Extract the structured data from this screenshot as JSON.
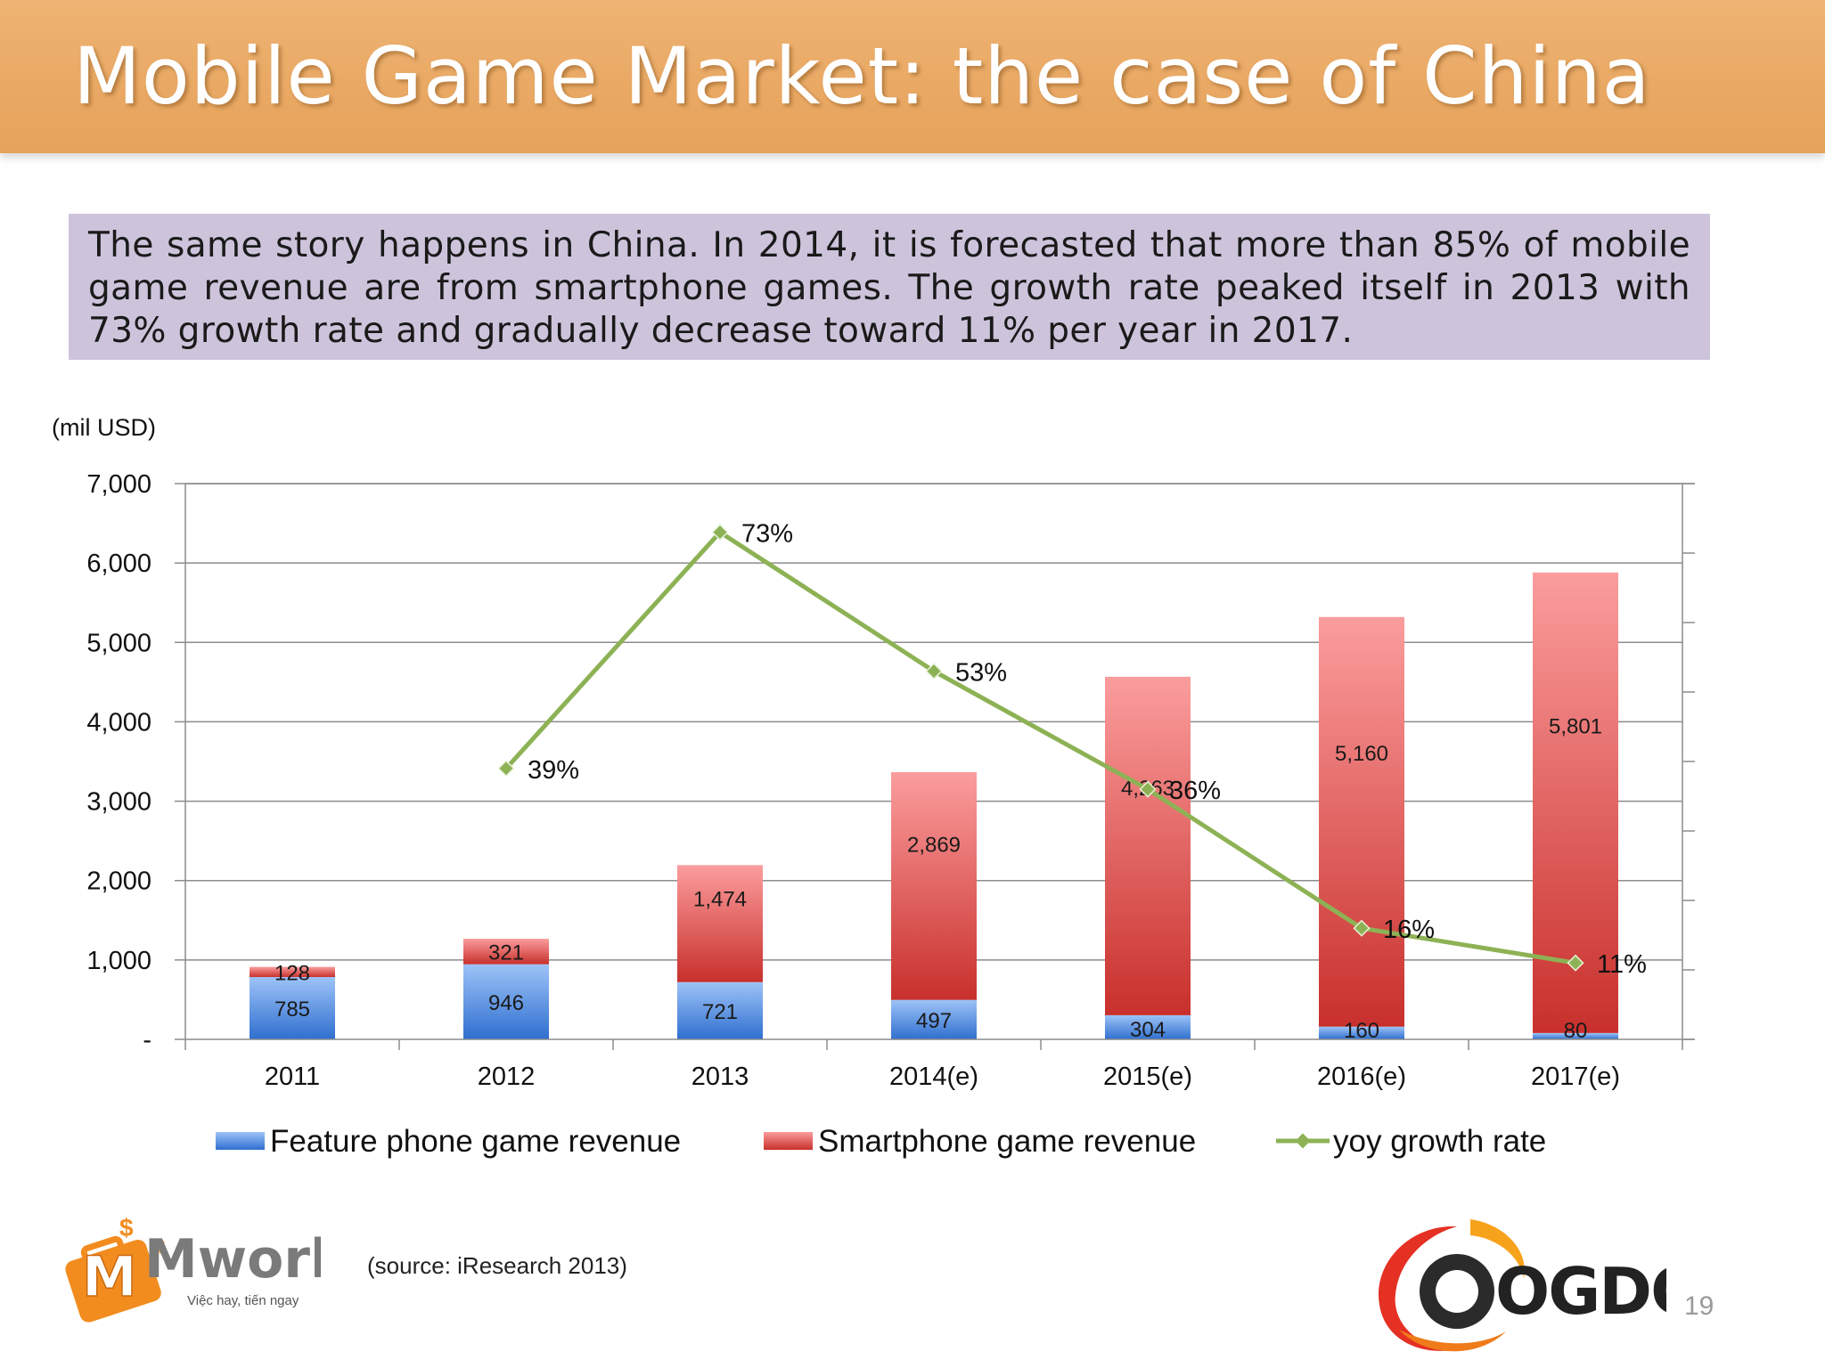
{
  "slide": {
    "title": "Mobile Game Market: the case of China",
    "summary": "The same story happens in China. In 2014, it is forecasted that more than 85% of mobile game revenue are from smartphone games. The growth rate peaked itself in 2013 with 73% growth rate and gradually decrease toward 11% per year in 2017.",
    "source": "(source: iResearch 2013)",
    "page_number": "19",
    "logo_left": {
      "brand": "Mwork",
      "tagline": "Việc hay, tiến ngay"
    },
    "logo_right": {
      "brand": "OGDC"
    }
  },
  "chart_data": {
    "type": "bar",
    "stacked": true,
    "unit_label": "(mil USD)",
    "categories": [
      "2011",
      "2012",
      "2013",
      "2014(e)",
      "2015(e)",
      "2016(e)",
      "2017(e)"
    ],
    "series": [
      {
        "name": "Feature phone game revenue",
        "values": [
          785,
          946,
          721,
          497,
          304,
          160,
          80
        ],
        "labels": [
          "785",
          "946",
          "721",
          "497",
          "304",
          "160",
          "80"
        ],
        "color": "#4f81bd"
      },
      {
        "name": "Smartphone game revenue",
        "values": [
          128,
          321,
          1474,
          2869,
          4263,
          5160,
          5801
        ],
        "labels": [
          "128",
          "321",
          "1,474",
          "2,869",
          "4,263",
          "5,160",
          "5,801"
        ],
        "color": "#c0504d"
      }
    ],
    "line_series": {
      "name": "yoy growth rate",
      "values": [
        null,
        39,
        73,
        53,
        36,
        16,
        11
      ],
      "labels": [
        "",
        "39%",
        "73%",
        "53%",
        "36%",
        "16%",
        "11%"
      ],
      "color": "#8db255",
      "secondary_axis_range": [
        0,
        80
      ]
    },
    "ylim": [
      0,
      7000
    ],
    "yticks": [
      0,
      1000,
      2000,
      3000,
      4000,
      5000,
      6000,
      7000
    ],
    "ytick_labels": [
      "-",
      "1,000",
      "2,000",
      "3,000",
      "4,000",
      "5,000",
      "6,000",
      "7,000"
    ],
    "grid": true,
    "legend_position": "bottom"
  }
}
